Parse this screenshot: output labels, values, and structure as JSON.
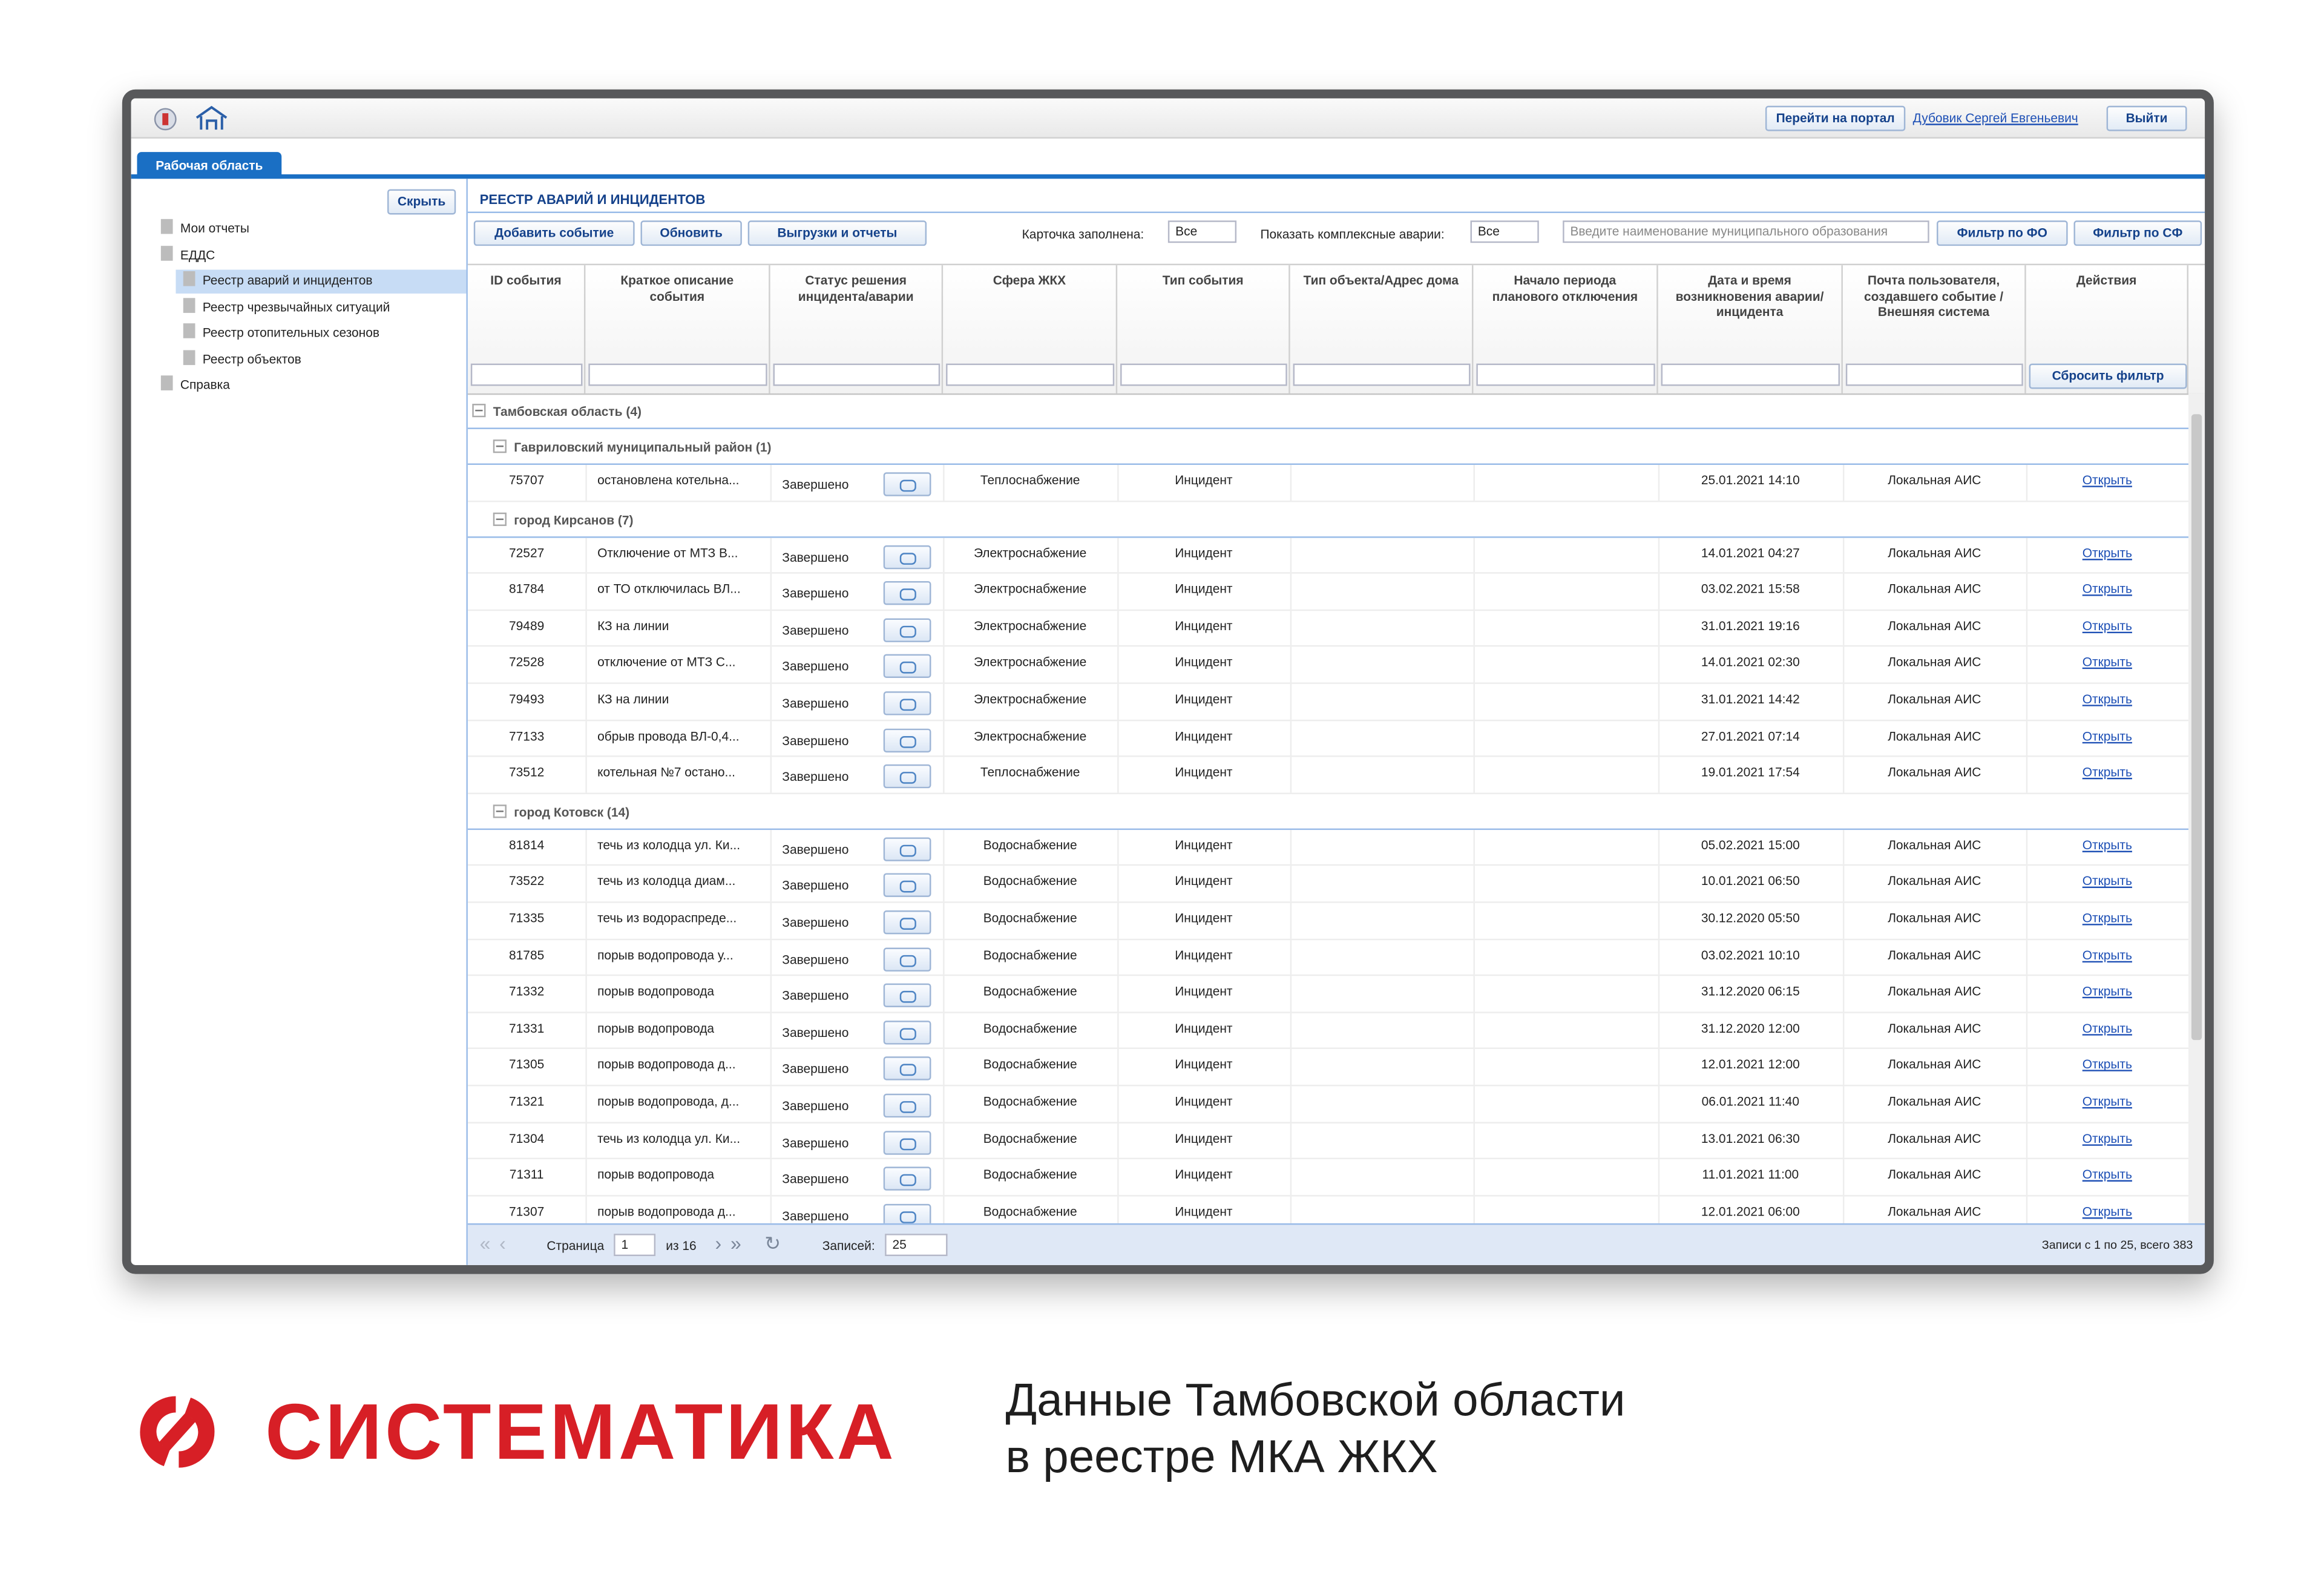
{
  "header": {
    "portal_button": "Перейти на портал",
    "user": "Дубовик Сергей Евгеньевич",
    "logout": "Выйти"
  },
  "tab": "Рабочая область",
  "sidebar": {
    "hide_button": "Скрыть",
    "tree": [
      {
        "label": "Мои отчеты"
      },
      {
        "label": "ЕДДС",
        "children": [
          {
            "label": "Реестр аварий и инцидентов",
            "selected": true
          },
          {
            "label": "Реестр чрезвычайных ситуаций"
          },
          {
            "label": "Реестр отопительных сезонов"
          },
          {
            "label": "Реестр объектов"
          }
        ]
      },
      {
        "label": "Справка"
      }
    ]
  },
  "panel_title": "РЕЕСТР АВАРИЙ И ИНЦИДЕНТОВ",
  "toolbar": {
    "add": "Добавить событие",
    "refresh": "Обновить",
    "exports": "Выгрузки и отчеты",
    "card_label": "Карточка заполнена:",
    "card_value": "Все",
    "complex_label": "Показать комплексные аварии:",
    "complex_value": "Все",
    "search_placeholder": "Введите наименование муниципального образования",
    "filter_fo": "Фильтр по ФО",
    "filter_sf": "Фильтр по СФ"
  },
  "table": {
    "columns": [
      "ID события",
      "Краткое описание события",
      "Статус решения инцидента/аварии",
      "Сфера ЖКХ",
      "Тип события",
      "Тип объекта/Адрес дома",
      "Начало периода планового отключения",
      "Дата и время возникновения аварии/инцидента",
      "Почта пользователя, создавшего событие / Внешняя система",
      "Действия"
    ],
    "reset_filter": "Сбросить фильтр",
    "root_group": "Тамбовская область (4)",
    "groups": [
      {
        "title": "Гавриловский муниципальный район (1)",
        "rows": [
          {
            "id": 75707,
            "description": "остановлена котельна...",
            "status": "Завершено",
            "sphere": "Теплоснабжение",
            "type": "Инцидент",
            "datetime": "25.01.2021 14:10",
            "source": "Локальная АИС",
            "action": "Открыть"
          }
        ]
      },
      {
        "title": "город Кирсанов (7)",
        "rows": [
          {
            "id": 72527,
            "description": "Отключение от МТЗ В...",
            "status": "Завершено",
            "sphere": "Электроснабжение",
            "type": "Инцидент",
            "datetime": "14.01.2021 04:27",
            "source": "Локальная АИС",
            "action": "Открыть"
          },
          {
            "id": 81784,
            "description": "от ТО отключилась ВЛ...",
            "status": "Завершено",
            "sphere": "Электроснабжение",
            "type": "Инцидент",
            "datetime": "03.02.2021 15:58",
            "source": "Локальная АИС",
            "action": "Открыть"
          },
          {
            "id": 79489,
            "description": "КЗ на линии",
            "status": "Завершено",
            "sphere": "Электроснабжение",
            "type": "Инцидент",
            "datetime": "31.01.2021 19:16",
            "source": "Локальная АИС",
            "action": "Открыть"
          },
          {
            "id": 72528,
            "description": "отключение от МТЗ С...",
            "status": "Завершено",
            "sphere": "Электроснабжение",
            "type": "Инцидент",
            "datetime": "14.01.2021 02:30",
            "source": "Локальная АИС",
            "action": "Открыть"
          },
          {
            "id": 79493,
            "description": "КЗ на линии",
            "status": "Завершено",
            "sphere": "Электроснабжение",
            "type": "Инцидент",
            "datetime": "31.01.2021 14:42",
            "source": "Локальная АИС",
            "action": "Открыть"
          },
          {
            "id": 77133,
            "description": "обрыв провода ВЛ-0,4...",
            "status": "Завершено",
            "sphere": "Электроснабжение",
            "type": "Инцидент",
            "datetime": "27.01.2021 07:14",
            "source": "Локальная АИС",
            "action": "Открыть"
          },
          {
            "id": 73512,
            "description": "котельная №7 остано...",
            "status": "Завершено",
            "sphere": "Теплоснабжение",
            "type": "Инцидент",
            "datetime": "19.01.2021 17:54",
            "source": "Локальная АИС",
            "action": "Открыть"
          }
        ]
      },
      {
        "title": "город Котовск (14)",
        "rows": [
          {
            "id": 81814,
            "description": "течь из колодца ул. Ки...",
            "status": "Завершено",
            "sphere": "Водоснабжение",
            "type": "Инцидент",
            "datetime": "05.02.2021 15:00",
            "source": "Локальная АИС",
            "action": "Открыть"
          },
          {
            "id": 73522,
            "description": "течь из колодца диам...",
            "status": "Завершено",
            "sphere": "Водоснабжение",
            "type": "Инцидент",
            "datetime": "10.01.2021 06:50",
            "source": "Локальная АИС",
            "action": "Открыть"
          },
          {
            "id": 71335,
            "description": "течь из водораспреде...",
            "status": "Завершено",
            "sphere": "Водоснабжение",
            "type": "Инцидент",
            "datetime": "30.12.2020 05:50",
            "source": "Локальная АИС",
            "action": "Открыть"
          },
          {
            "id": 81785,
            "description": "порыв водопровода у...",
            "status": "Завершено",
            "sphere": "Водоснабжение",
            "type": "Инцидент",
            "datetime": "03.02.2021 10:10",
            "source": "Локальная АИС",
            "action": "Открыть"
          },
          {
            "id": 71332,
            "description": "порыв водопровода",
            "status": "Завершено",
            "sphere": "Водоснабжение",
            "type": "Инцидент",
            "datetime": "31.12.2020 06:15",
            "source": "Локальная АИС",
            "action": "Открыть"
          },
          {
            "id": 71331,
            "description": "порыв водопровода",
            "status": "Завершено",
            "sphere": "Водоснабжение",
            "type": "Инцидент",
            "datetime": "31.12.2020 12:00",
            "source": "Локальная АИС",
            "action": "Открыть"
          },
          {
            "id": 71305,
            "description": "порыв водопровода д...",
            "status": "Завершено",
            "sphere": "Водоснабжение",
            "type": "Инцидент",
            "datetime": "12.01.2021 12:00",
            "source": "Локальная АИС",
            "action": "Открыть"
          },
          {
            "id": 71321,
            "description": "порыв водопровода, д...",
            "status": "Завершено",
            "sphere": "Водоснабжение",
            "type": "Инцидент",
            "datetime": "06.01.2021 11:40",
            "source": "Локальная АИС",
            "action": "Открыть"
          },
          {
            "id": 71304,
            "description": "течь из колодца ул. Ки...",
            "status": "Завершено",
            "sphere": "Водоснабжение",
            "type": "Инцидент",
            "datetime": "13.01.2021 06:30",
            "source": "Локальная АИС",
            "action": "Открыть"
          },
          {
            "id": 71311,
            "description": "порыв водопровода",
            "status": "Завершено",
            "sphere": "Водоснабжение",
            "type": "Инцидент",
            "datetime": "11.01.2021 11:00",
            "source": "Локальная АИС",
            "action": "Открыть"
          },
          {
            "id": 71307,
            "description": "порыв водопровода д...",
            "status": "Завершено",
            "sphere": "Водоснабжение",
            "type": "Инцидент",
            "datetime": "12.01.2021 06:00",
            "source": "Локальная АИС",
            "action": "Открыть"
          }
        ]
      }
    ]
  },
  "pagination": {
    "page_label": "Страница",
    "page": "1",
    "of": "из 16",
    "records_label": "Записей:",
    "per_page": "25",
    "summary": "Записи с 1 по 25, всего 383"
  },
  "footer": {
    "brand": "СИСТЕМАТИКА",
    "caption": [
      "Данные Тамбовской области",
      "в реестре МКА ЖКХ"
    ]
  }
}
